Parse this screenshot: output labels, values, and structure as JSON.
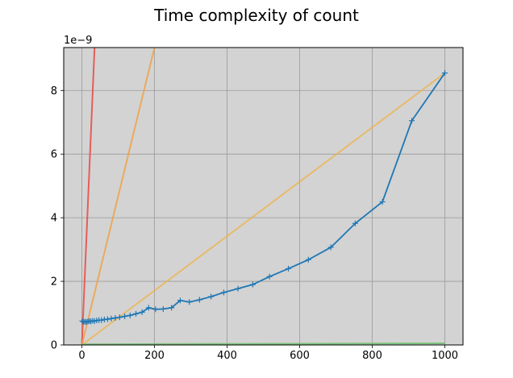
{
  "chart_data": {
    "type": "line",
    "title": "Time complexity of count",
    "xlabel": "",
    "ylabel": "",
    "y_offset_label": "1e−9",
    "xlim": [
      -50,
      1050
    ],
    "ylim": [
      0,
      9.35
    ],
    "x_ticks": [
      0,
      200,
      400,
      600,
      800,
      1000
    ],
    "x_tick_labels": [
      "0",
      "200",
      "400",
      "600",
      "800",
      "1000"
    ],
    "y_ticks": [
      0,
      2,
      4,
      6,
      8
    ],
    "y_tick_labels": [
      "0",
      "2",
      "4",
      "6",
      "8"
    ],
    "grid": true,
    "legend": "none",
    "background_color": "#d3d3d3",
    "series": [
      {
        "color": "#1f77b4",
        "marker": "+",
        "x": [
          1,
          5,
          9,
          13,
          17,
          21,
          25,
          30,
          35,
          41,
          47,
          54,
          62,
          71,
          81,
          92,
          104,
          118,
          133,
          149,
          166,
          184,
          203,
          224,
          247,
          271,
          296,
          324,
          356,
          391,
          430,
          471,
          517,
          569,
          624,
          686,
          753,
          828,
          909,
          1000
        ],
        "y": [
          0.75,
          0.72,
          0.73,
          0.72,
          0.74,
          0.75,
          0.74,
          0.76,
          0.75,
          0.77,
          0.78,
          0.78,
          0.8,
          0.81,
          0.83,
          0.85,
          0.87,
          0.9,
          0.93,
          0.98,
          1.03,
          1.17,
          1.12,
          1.13,
          1.17,
          1.4,
          1.35,
          1.42,
          1.52,
          1.65,
          1.77,
          1.9,
          2.15,
          2.4,
          2.68,
          3.07,
          3.82,
          4.5,
          7.05,
          8.55
        ]
      }
    ],
    "reference_lines": [
      {
        "color": "#e8504a",
        "opacity": 0.9,
        "x": [
          0,
          35
        ],
        "y": [
          0,
          9.35
        ]
      },
      {
        "color": "#f0a040",
        "opacity": 0.8,
        "x": [
          0,
          200
        ],
        "y": [
          0,
          9.35
        ]
      },
      {
        "color": "#f0b040",
        "opacity": 0.7,
        "x": [
          0,
          1000
        ],
        "y": [
          0,
          8.55
        ]
      },
      {
        "color": "#70c070",
        "opacity": 0.9,
        "x": [
          0,
          1000
        ],
        "y": [
          0.02,
          0.05
        ]
      }
    ]
  }
}
